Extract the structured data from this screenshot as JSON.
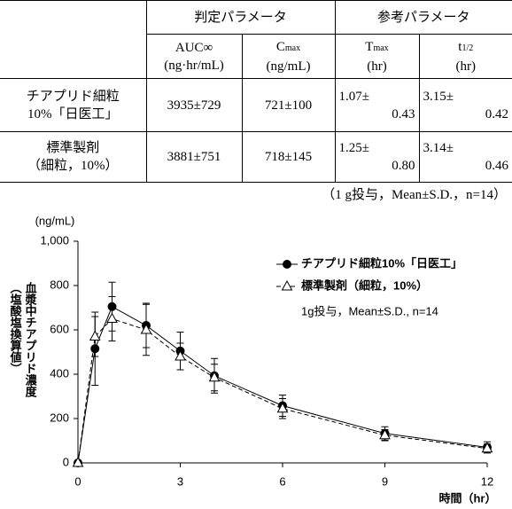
{
  "table": {
    "groups": [
      "判定パラメータ",
      "参考パラメータ"
    ],
    "columns": [
      {
        "main": "AUC∞",
        "unit": "(ng·hr/mL)"
      },
      {
        "main": "C",
        "sub": "max",
        "unit": "(ng/mL)"
      },
      {
        "main": "T",
        "sub": "max",
        "unit": "(hr)"
      },
      {
        "main": "t",
        "sub": "1/2",
        "unit": "(hr)"
      }
    ],
    "rows": [
      {
        "label": [
          "チアプリド細粒",
          "10%「日医工」"
        ],
        "cells": [
          "3935±729",
          "721±100",
          [
            "1.07±",
            "0.43"
          ],
          [
            "3.15±",
            "0.42"
          ]
        ]
      },
      {
        "label": [
          "標準製剤",
          "（細粒，10%）"
        ],
        "cells": [
          "3881±751",
          "718±145",
          [
            "1.25±",
            "0.80"
          ],
          [
            "3.14±",
            "0.46"
          ]
        ]
      }
    ],
    "note": "（1 g投与，Mean±S.D.，n=14）"
  },
  "chart_data": {
    "type": "line",
    "y_unit": "(ng/mL)",
    "ylabel": [
      "血漿中チアプリド濃度",
      "（塩酸塩換算値）"
    ],
    "xlabel": "時間（hr）",
    "annotation": "1g投与，Mean±S.D., n=14",
    "x": [
      0,
      0.5,
      1,
      2,
      3,
      4,
      6,
      9,
      12
    ],
    "series": [
      {
        "name": "チアプリド細粒10%「日医工」",
        "color": "#000000",
        "marker": "circle",
        "dash": "solid",
        "values": [
          0,
          515,
          705,
          620,
          505,
          393,
          258,
          133,
          70
        ],
        "errors": [
          0,
          165,
          110,
          100,
          85,
          78,
          48,
          30,
          25
        ]
      },
      {
        "name": "標準製剤（細粒，10%）",
        "color": "#000000",
        "marker": "triangle",
        "dash": "dashed",
        "values": [
          0,
          570,
          650,
          600,
          480,
          385,
          245,
          125,
          65
        ],
        "errors": [
          0,
          90,
          100,
          115,
          60,
          60,
          45,
          25,
          20
        ]
      }
    ],
    "xlim": [
      0,
      12
    ],
    "xticks": [
      0,
      3,
      6,
      9,
      12
    ],
    "ylim": [
      0,
      1000
    ],
    "yticks": [
      0,
      200,
      400,
      600,
      800,
      {
        "value": 1000,
        "label": "1,000"
      }
    ],
    "grid": false
  }
}
